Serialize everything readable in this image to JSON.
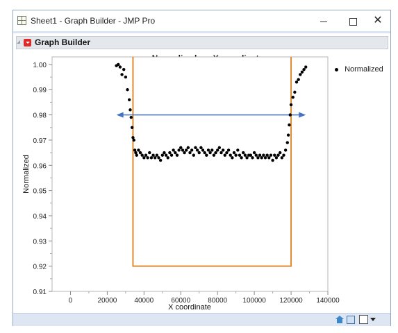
{
  "window": {
    "title": "Sheet1 - Graph Builder - JMP Pro",
    "minimize_glyph": "",
    "close_glyph": "✕"
  },
  "outline": {
    "title": "Graph Builder"
  },
  "chart_data": {
    "type": "scatter",
    "title": "Normalized vs. X coordinate",
    "xlabel": "X coordinate",
    "ylabel": "Normalized",
    "xlim": [
      -10000,
      140000
    ],
    "ylim": [
      0.91,
      1.003
    ],
    "xticks": [
      0,
      20000,
      40000,
      60000,
      80000,
      100000,
      120000,
      140000
    ],
    "xtick_labels": [
      "0",
      "20000",
      "40000",
      "60000",
      "80000",
      "100000",
      "120000",
      "140000"
    ],
    "yticks": [
      0.91,
      0.92,
      0.93,
      0.94,
      0.95,
      0.96,
      0.97,
      0.98,
      0.99,
      1.0
    ],
    "ytick_labels": [
      "0.91",
      "0.92",
      "0.93",
      "0.94",
      "0.95",
      "0.96",
      "0.97",
      "0.98",
      "0.99",
      "1.00"
    ],
    "grid": false,
    "legend": {
      "placement": "right",
      "entries": [
        "Normalized"
      ]
    },
    "colors": {
      "points": "#000000",
      "bracket": "#e08a2e",
      "arrow": "#4472c4"
    },
    "series": [
      {
        "name": "Normalized",
        "x": [
          25000,
          26000,
          27000,
          28000,
          29000,
          30000,
          31000,
          32000,
          32500,
          33000,
          33500,
          34000,
          34500,
          35000,
          35500,
          36000,
          37000,
          38000,
          39000,
          40000,
          41000,
          42000,
          43000,
          44000,
          45000,
          46000,
          47000,
          48000,
          49000,
          50000,
          51000,
          52000,
          53000,
          54000,
          55000,
          56000,
          57000,
          58000,
          59000,
          60000,
          61000,
          62000,
          63000,
          64000,
          65000,
          66000,
          67000,
          68000,
          69000,
          70000,
          71000,
          72000,
          73000,
          74000,
          75000,
          76000,
          77000,
          78000,
          79000,
          80000,
          81000,
          82000,
          83000,
          84000,
          85000,
          86000,
          87000,
          88000,
          89000,
          90000,
          91000,
          92000,
          93000,
          94000,
          95000,
          96000,
          97000,
          98000,
          99000,
          100000,
          101000,
          102000,
          103000,
          104000,
          105000,
          106000,
          107000,
          108000,
          109000,
          110000,
          111000,
          112000,
          113000,
          114000,
          115000,
          116000,
          117000,
          118000,
          118500,
          119000,
          119500,
          120000,
          121000,
          122000,
          123000,
          124000,
          125000,
          126000,
          127000,
          128000
        ],
        "y": [
          0.9995,
          1.0,
          0.999,
          0.996,
          0.998,
          0.995,
          0.99,
          0.986,
          0.982,
          0.979,
          0.975,
          0.971,
          0.97,
          0.966,
          0.965,
          0.964,
          0.966,
          0.965,
          0.964,
          0.963,
          0.964,
          0.963,
          0.965,
          0.963,
          0.964,
          0.963,
          0.964,
          0.963,
          0.962,
          0.964,
          0.965,
          0.964,
          0.963,
          0.965,
          0.964,
          0.966,
          0.965,
          0.964,
          0.966,
          0.967,
          0.966,
          0.965,
          0.966,
          0.967,
          0.965,
          0.966,
          0.964,
          0.967,
          0.966,
          0.965,
          0.967,
          0.966,
          0.965,
          0.964,
          0.966,
          0.965,
          0.966,
          0.964,
          0.965,
          0.966,
          0.967,
          0.965,
          0.966,
          0.964,
          0.965,
          0.966,
          0.964,
          0.963,
          0.965,
          0.964,
          0.966,
          0.964,
          0.963,
          0.965,
          0.964,
          0.963,
          0.964,
          0.964,
          0.963,
          0.965,
          0.964,
          0.963,
          0.964,
          0.963,
          0.964,
          0.963,
          0.964,
          0.963,
          0.964,
          0.962,
          0.964,
          0.963,
          0.964,
          0.965,
          0.963,
          0.964,
          0.966,
          0.969,
          0.972,
          0.976,
          0.98,
          0.984,
          0.987,
          0.989,
          0.993,
          0.994,
          0.996,
          0.997,
          0.998,
          0.999
        ]
      }
    ],
    "annotations": {
      "bracket": {
        "x_left": 34000,
        "x_right": 120000,
        "y_top": 1.003,
        "y_bottom": 0.92
      },
      "arrow": {
        "x_start": 25000,
        "x_end": 128000,
        "y": 0.98
      }
    }
  }
}
